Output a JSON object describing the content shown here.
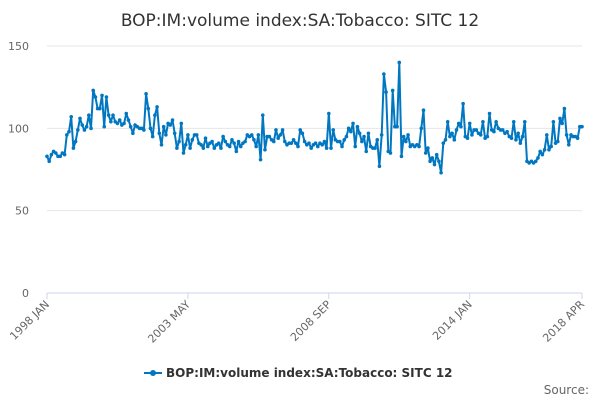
{
  "chart_data": {
    "type": "line",
    "title": "BOP:IM:volume index:SA:Tobacco: SITC 12",
    "xlabel": "",
    "ylabel": "",
    "x_start": "1998 JAN",
    "x_end": "2018 APR",
    "x_frequency": "monthly",
    "x_ticks": [
      {
        "label": "1998 JAN",
        "index": 0
      },
      {
        "label": "2003 MAY",
        "index": 64
      },
      {
        "label": "2008 SEP",
        "index": 128
      },
      {
        "label": "2014 JAN",
        "index": 192
      },
      {
        "label": "2018 APR",
        "index": 243
      }
    ],
    "y_ticks": [
      0,
      50,
      100,
      150
    ],
    "ylim": [
      0,
      150
    ],
    "grid": true,
    "legend_position": "bottom",
    "color": "#0077c0",
    "series": [
      {
        "name": "BOP:IM:volume index:SA:Tobacco: SITC 12",
        "values": [
          83,
          80,
          84,
          86,
          85,
          83,
          83,
          85,
          84,
          96,
          98,
          107,
          88,
          92,
          99,
          106,
          102,
          99,
          101,
          108,
          100,
          123,
          119,
          112,
          112,
          120,
          101,
          119,
          108,
          104,
          108,
          104,
          103,
          105,
          102,
          103,
          109,
          105,
          101,
          97,
          102,
          101,
          100,
          100,
          99,
          121,
          112,
          100,
          95,
          108,
          113,
          97,
          90,
          101,
          96,
          103,
          102,
          105,
          97,
          88,
          92,
          103,
          85,
          90,
          96,
          88,
          93,
          96,
          96,
          91,
          90,
          88,
          94,
          89,
          91,
          92,
          88,
          90,
          91,
          88,
          95,
          92,
          90,
          89,
          93,
          91,
          86,
          92,
          89,
          91,
          92,
          96,
          95,
          96,
          93,
          89,
          96,
          81,
          108,
          87,
          95,
          95,
          93,
          92,
          99,
          94,
          96,
          99,
          92,
          90,
          91,
          91,
          93,
          91,
          89,
          99,
          97,
          92,
          90,
          91,
          88,
          90,
          91,
          89,
          91,
          90,
          92,
          88,
          109,
          88,
          99,
          93,
          92,
          92,
          89,
          93,
          95,
          100,
          98,
          103,
          89,
          101,
          97,
          92,
          95,
          86,
          97,
          89,
          88,
          88,
          93,
          77,
          96,
          133,
          122,
          86,
          85,
          123,
          101,
          101,
          140,
          83,
          95,
          92,
          96,
          89,
          90,
          89,
          90,
          89,
          100,
          111,
          85,
          88,
          80,
          82,
          78,
          84,
          80,
          73,
          91,
          93,
          104,
          95,
          97,
          93,
          99,
          103,
          101,
          115,
          95,
          94,
          103,
          96,
          99,
          99,
          97,
          96,
          104,
          94,
          95,
          109,
          99,
          98,
          104,
          100,
          99,
          99,
          97,
          98,
          95,
          94,
          104,
          93,
          97,
          91,
          95,
          104,
          80,
          79,
          80,
          79,
          80,
          82,
          86,
          84,
          87,
          96,
          87,
          89,
          104,
          91,
          92,
          106,
          103,
          112,
          96,
          90,
          96,
          95,
          95,
          94,
          101,
          101
        ]
      }
    ],
    "source_label": "Source:"
  }
}
